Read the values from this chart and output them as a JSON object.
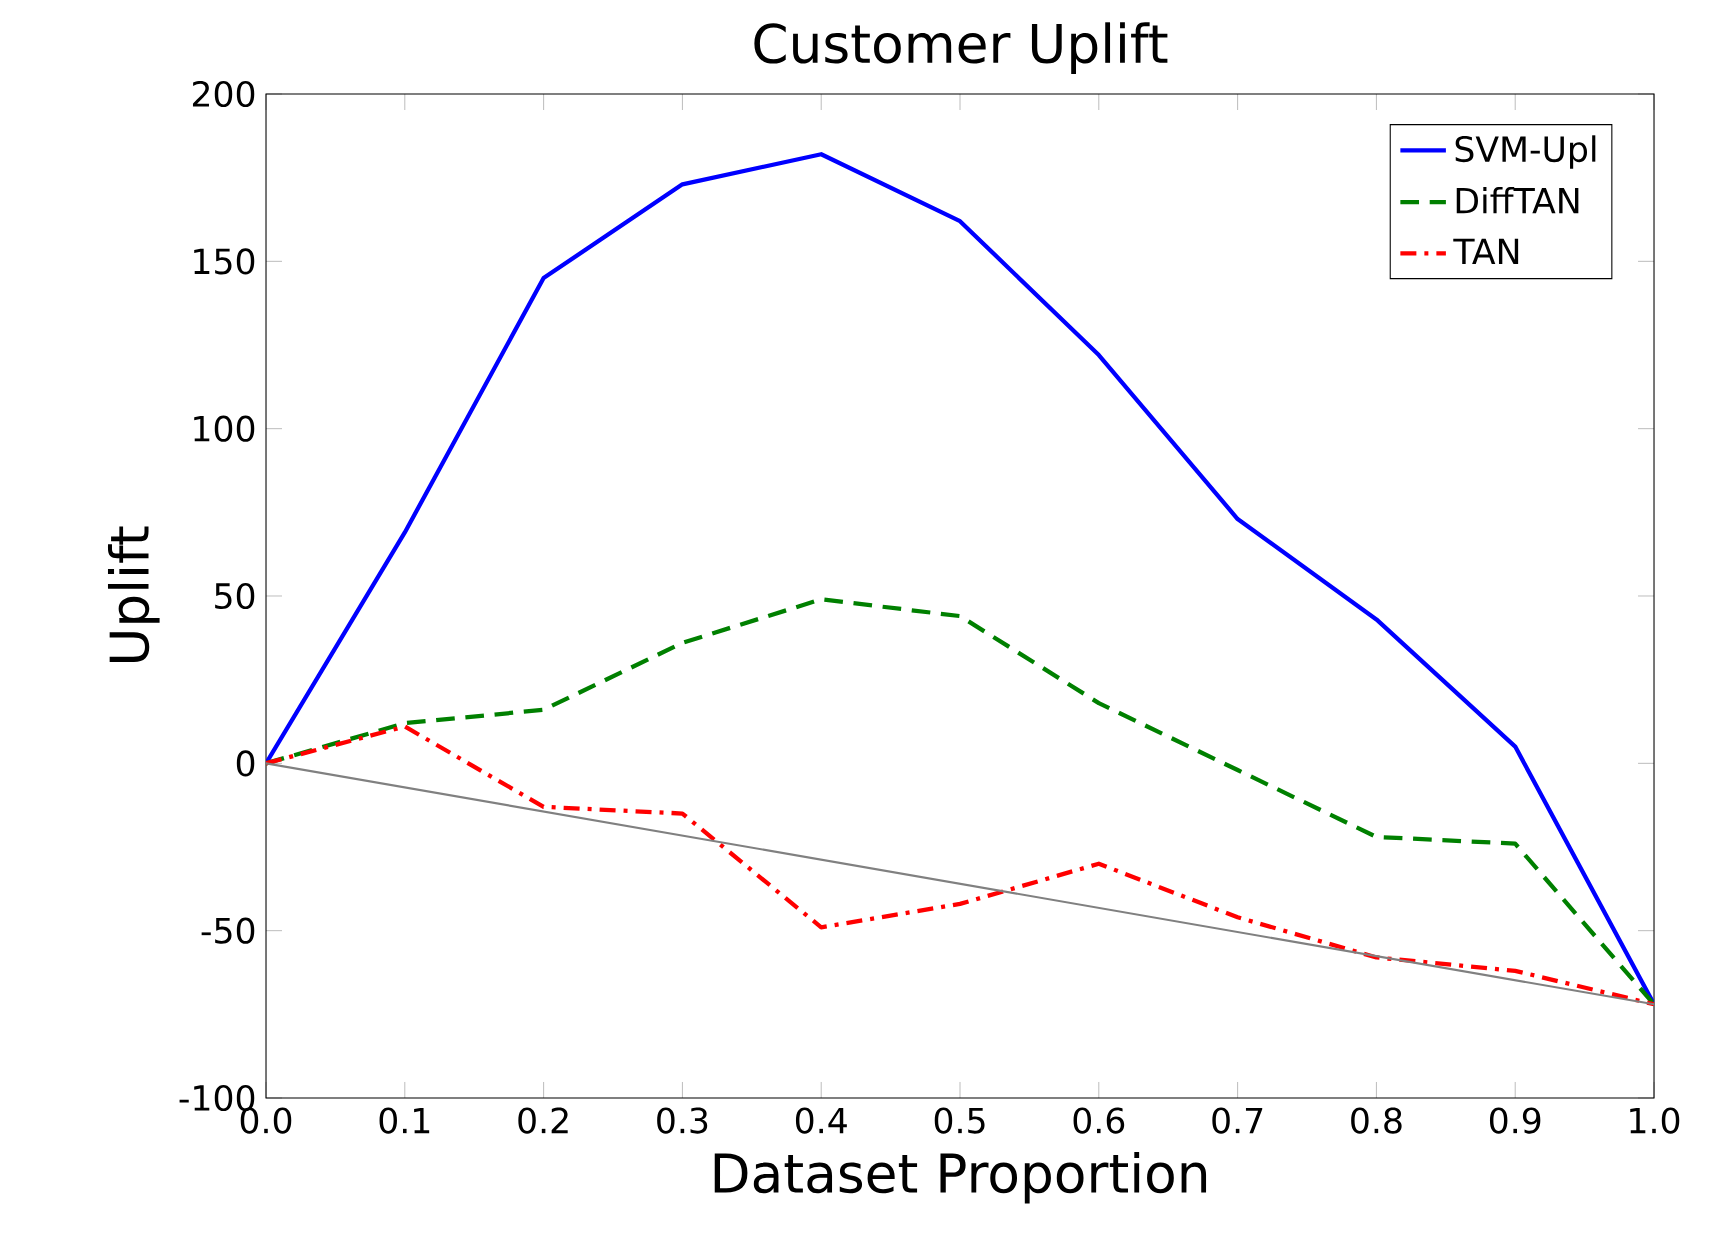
{
  "chart_data": {
    "type": "line",
    "title": "Customer Uplift",
    "xlabel": "Dataset Proportion",
    "ylabel": "Uplift",
    "x": [
      0.0,
      0.1,
      0.2,
      0.3,
      0.4,
      0.5,
      0.6,
      0.7,
      0.8,
      0.9,
      1.0
    ],
    "series": [
      {
        "name": "SVM-Upl",
        "color": "#0000ff",
        "line_style": "solid",
        "values": [
          0,
          69,
          145,
          173,
          182,
          162,
          122,
          73,
          43,
          5,
          -72
        ]
      },
      {
        "name": "DiffTAN",
        "color": "#008000",
        "line_style": "dashed",
        "values": [
          0,
          12,
          16,
          36,
          49,
          44,
          18,
          -2,
          -22,
          -24,
          -72
        ]
      },
      {
        "name": "TAN",
        "color": "#ff0000",
        "line_style": "dotted",
        "values": [
          0,
          11,
          -13,
          -15,
          -49,
          -42,
          -30,
          -46,
          -58,
          -62,
          -72
        ]
      },
      {
        "color": "#808080",
        "line_style": "solid",
        "x": [
          0.0,
          1.0
        ],
        "values": [
          0,
          -72
        ]
      }
    ],
    "xlim": [
      0.0,
      1.0
    ],
    "ylim": [
      -100,
      200
    ],
    "xticks": [
      {
        "value": 0.0,
        "label": "0.0"
      },
      {
        "value": 0.1,
        "label": "0.1"
      },
      {
        "value": 0.2,
        "label": "0.2"
      },
      {
        "value": 0.3,
        "label": "0.3"
      },
      {
        "value": 0.4,
        "label": "0.4"
      },
      {
        "value": 0.5,
        "label": "0.5"
      },
      {
        "value": 0.6,
        "label": "0.6"
      },
      {
        "value": 0.7,
        "label": "0.7"
      },
      {
        "value": 0.8,
        "label": "0.8"
      },
      {
        "value": 0.9,
        "label": "0.9"
      },
      {
        "value": 1.0,
        "label": "1.0"
      }
    ],
    "yticks": [
      -100,
      -50,
      0,
      50,
      100,
      150,
      200
    ],
    "grid": false,
    "legend": "top right",
    "marker": "none"
  }
}
